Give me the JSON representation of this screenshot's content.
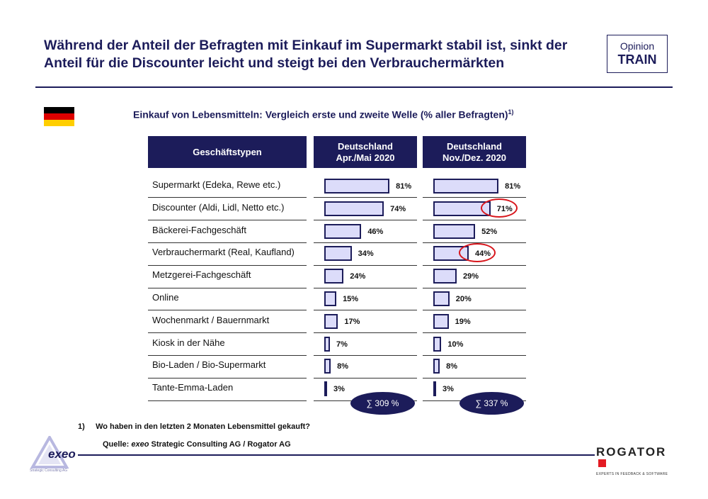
{
  "headline": "Während der Anteil der Befragten mit Einkauf im Supermarkt stabil ist, sinkt der Anteil für die Discounter leicht und steigt bei den Verbrauchermärkten",
  "badge": {
    "line1": "Opinion",
    "line2": "TRAIN"
  },
  "flag": {
    "colors": [
      "#000000",
      "#dd0000",
      "#ffce00"
    ]
  },
  "chart_data": {
    "type": "bar",
    "title": "Einkauf von Lebensmitteln: Vergleich erste und zweite Welle (% aller Befragten)",
    "title_note": "1)",
    "category_header": "Geschäftstypen",
    "categories": [
      "Supermarkt (Edeka, Rewe etc.)",
      "Discounter (Aldi, Lidl, Netto etc.)",
      "Bäckerei-Fachgeschäft",
      "Verbrauchermarkt (Real, Kaufland)",
      "Metzgerei-Fachgeschäft",
      "Online",
      "Wochenmarkt / Bauernmarkt",
      "Kiosk in der Nähe",
      "Bio-Laden / Bio-Supermarkt",
      "Tante-Emma-Laden"
    ],
    "series": [
      {
        "name": "Deutschland Apr./Mai 2020",
        "header_line1": "Deutschland",
        "header_line2": "Apr./Mai 2020",
        "values": [
          81,
          74,
          46,
          34,
          24,
          15,
          17,
          7,
          8,
          3
        ],
        "labels": [
          "81%",
          "74%",
          "46%",
          "34%",
          "24%",
          "15%",
          "17%",
          "7%",
          "8%",
          "3%"
        ],
        "sum_label": "∑ 309 %"
      },
      {
        "name": "Deutschland Nov./Dez. 2020",
        "header_line1": "Deutschland",
        "header_line2": "Nov./Dez. 2020",
        "values": [
          81,
          71,
          52,
          44,
          29,
          20,
          19,
          10,
          8,
          3
        ],
        "labels": [
          "81%",
          "71%",
          "52%",
          "44%",
          "29%",
          "20%",
          "19%",
          "10%",
          "8%",
          "3%"
        ],
        "sum_label": "∑ 337 %"
      }
    ],
    "highlighted": [
      {
        "series": 1,
        "category": 1
      },
      {
        "series": 1,
        "category": 3
      }
    ],
    "ylim": [
      0,
      100
    ],
    "bar_color": "#dcdcfa",
    "accent": "#1c1c5a",
    "highlight_color": "#d8161c"
  },
  "footnote": {
    "marker": "1)",
    "text": "Wo haben in den letzten 2 Monaten Lebensmittel gekauft?"
  },
  "source": {
    "prefix": "Quelle: ",
    "brand": "exeo",
    "rest": " Strategic Consulting AG / Rogator AG"
  },
  "logos": {
    "exeo": {
      "name": "exeo",
      "tagline": "Strategic Consulting AG"
    },
    "rogator": {
      "name": "ROGATOR",
      "tagline": "EXPERTS IN FEEDBACK & SOFTWARE"
    }
  }
}
